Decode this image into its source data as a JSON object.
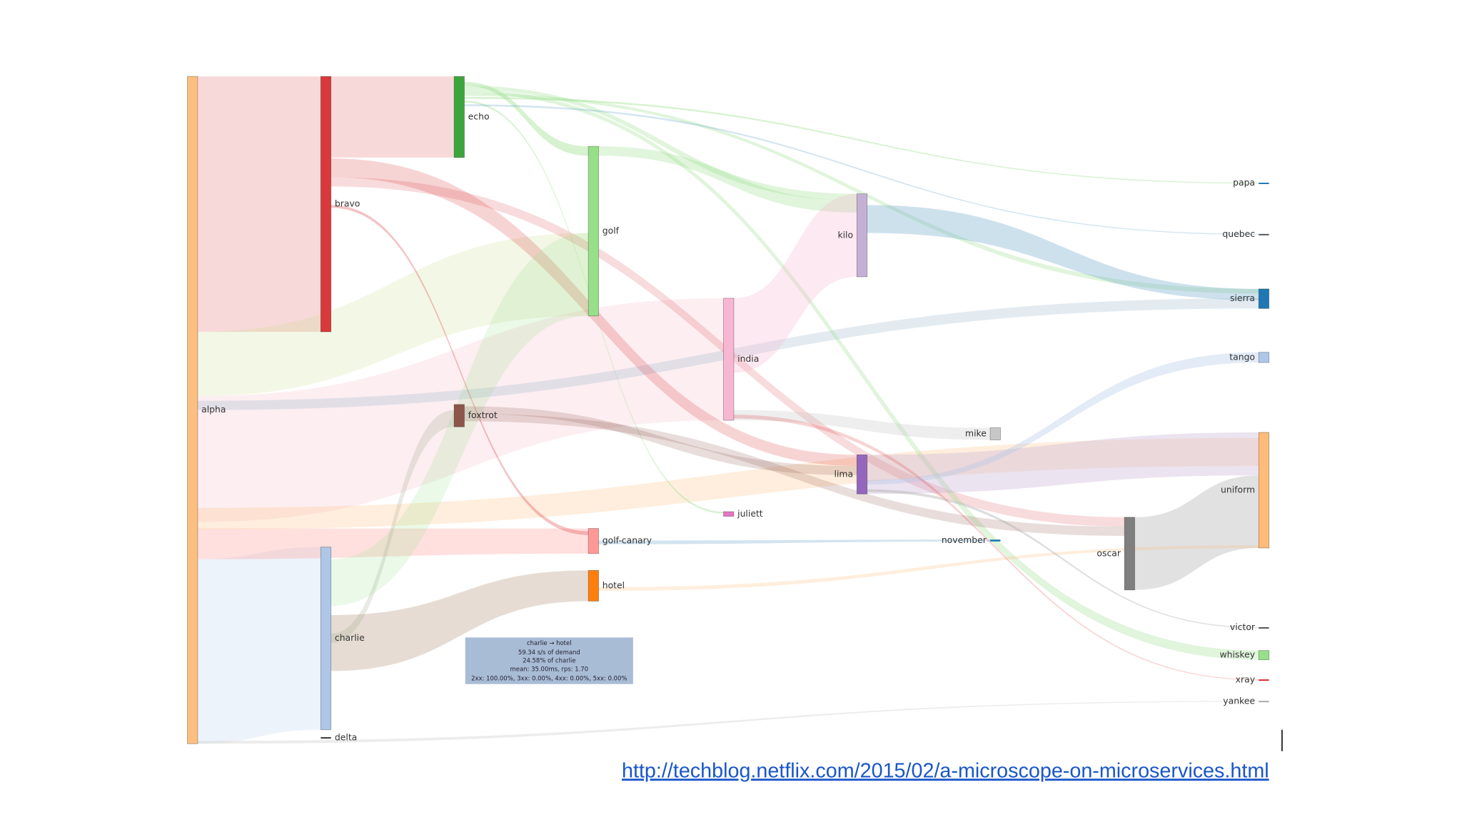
{
  "nodes": [
    {
      "label": "alpha"
    },
    {
      "label": "bravo"
    },
    {
      "label": "charlie"
    },
    {
      "label": "delta"
    },
    {
      "label": "echo"
    },
    {
      "label": "foxtrot"
    },
    {
      "label": "golf"
    },
    {
      "label": "golf-canary"
    },
    {
      "label": "hotel"
    },
    {
      "label": "india"
    },
    {
      "label": "juliett"
    },
    {
      "label": "kilo"
    },
    {
      "label": "lima"
    },
    {
      "label": "mike"
    },
    {
      "label": "november"
    },
    {
      "label": "oscar"
    },
    {
      "label": "papa"
    },
    {
      "label": "quebec"
    },
    {
      "label": "sierra"
    },
    {
      "label": "tango"
    },
    {
      "label": "uniform"
    },
    {
      "label": "victor"
    },
    {
      "label": "whiskey"
    },
    {
      "label": "xray"
    },
    {
      "label": "yankee"
    }
  ],
  "tooltip": {
    "lines": [
      "charlie → hotel",
      "59.34 s/s of demand",
      "24.58% of charlie",
      "mean: 35.00ms, rps: 1.70",
      "2xx: 100.00%, 3xx: 0.00%, 4xx: 0.00%, 5xx: 0.00%"
    ]
  },
  "link": {
    "text": "http://techblog.netflix.com/2015/02/a-microscope-on-microservices.html"
  }
}
